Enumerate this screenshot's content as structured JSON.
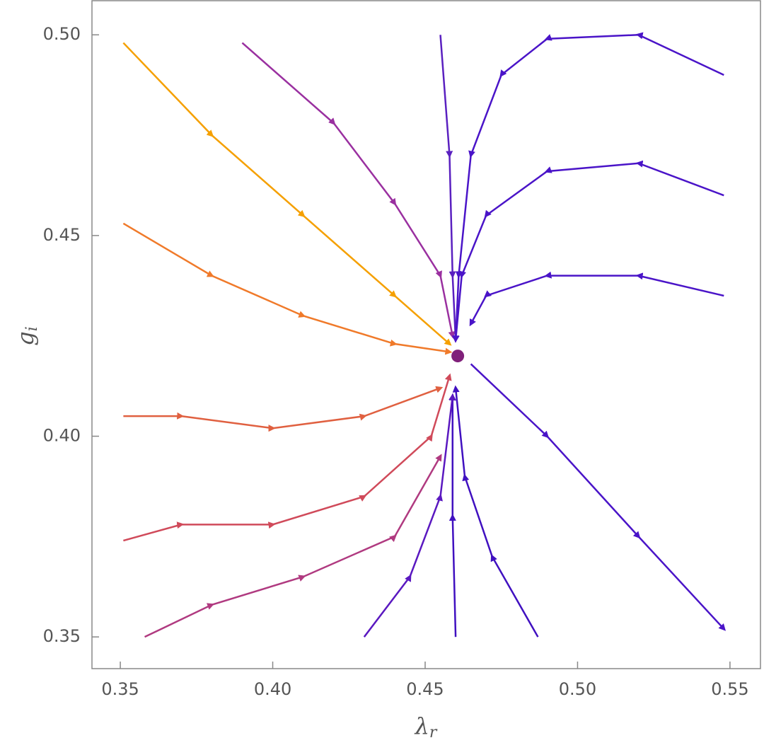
{
  "chart_data": {
    "type": "stream",
    "x_label": {
      "symbol": "λ",
      "subscript": "r"
    },
    "y_label": {
      "symbol": "g",
      "subscript": "i"
    },
    "xlim": [
      0.3407,
      0.56
    ],
    "ylim": [
      0.3421,
      0.5085
    ],
    "xticks": [
      0.35,
      {
        "value": 0.4,
        "label": "0.40"
      },
      0.45,
      {
        "value": 0.5,
        "label": "0.50"
      },
      0.55
    ],
    "yticks": [
      0.35,
      {
        "value": 0.4,
        "label": "0.40"
      },
      0.45,
      {
        "value": 0.5,
        "label": "0.50"
      }
    ],
    "fixed_point": {
      "x": 0.4607,
      "y": 0.42,
      "color": "#80207a"
    },
    "series": [
      {
        "color": "#f5a000",
        "x": [
          0.351,
          0.38,
          0.41,
          0.44,
          0.458
        ],
        "y": [
          0.498,
          0.475,
          0.455,
          0.435,
          0.423
        ]
      },
      {
        "color": "#f07a2a",
        "x": [
          0.351,
          0.38,
          0.41,
          0.44,
          0.458
        ],
        "y": [
          0.453,
          0.44,
          0.43,
          0.423,
          0.421
        ]
      },
      {
        "color": "#e06040",
        "x": [
          0.351,
          0.37,
          0.4,
          0.43,
          0.455
        ],
        "y": [
          0.405,
          0.405,
          0.402,
          0.405,
          0.412
        ]
      },
      {
        "color": "#d04a5a",
        "x": [
          0.351,
          0.37,
          0.4,
          0.43,
          0.452,
          0.458
        ],
        "y": [
          0.374,
          0.378,
          0.378,
          0.385,
          0.4,
          0.415
        ]
      },
      {
        "color": "#b03a80",
        "x": [
          0.358,
          0.38,
          0.41,
          0.44,
          0.455
        ],
        "y": [
          0.35,
          0.358,
          0.365,
          0.375,
          0.395
        ]
      },
      {
        "color": "#9a30a0",
        "x": [
          0.39,
          0.42,
          0.44,
          0.455,
          0.459
        ],
        "y": [
          0.498,
          0.478,
          0.458,
          0.44,
          0.425
        ]
      },
      {
        "color": "#5a20c0",
        "x": [
          0.455,
          0.458,
          0.459,
          0.46
        ],
        "y": [
          0.5,
          0.47,
          0.44,
          0.424
        ]
      },
      {
        "color": "#4a14c8",
        "x": [
          0.548,
          0.52,
          0.49,
          0.475,
          0.465,
          0.461,
          0.46
        ],
        "y": [
          0.49,
          0.5,
          0.499,
          0.49,
          0.47,
          0.44,
          0.424
        ]
      },
      {
        "color": "#4a14c8",
        "x": [
          0.548,
          0.52,
          0.49,
          0.47,
          0.462,
          0.46
        ],
        "y": [
          0.46,
          0.468,
          0.466,
          0.455,
          0.44,
          0.424
        ]
      },
      {
        "color": "#4a14c8",
        "x": [
          0.548,
          0.52,
          0.49,
          0.47,
          0.465
        ],
        "y": [
          0.435,
          0.44,
          0.44,
          0.435,
          0.428
        ]
      },
      {
        "color": "#4a14c8",
        "x": [
          0.465,
          0.49,
          0.52,
          0.548
        ],
        "y": [
          0.418,
          0.4,
          0.375,
          0.352
        ]
      },
      {
        "color": "#4010c0",
        "x": [
          0.46,
          0.459,
          0.459
        ],
        "y": [
          0.35,
          0.38,
          0.41
        ]
      },
      {
        "color": "#4010c0",
        "x": [
          0.487,
          0.472,
          0.463,
          0.46
        ],
        "y": [
          0.35,
          0.37,
          0.39,
          0.412
        ]
      },
      {
        "color": "#5a18c0",
        "x": [
          0.43,
          0.445,
          0.455,
          0.459
        ],
        "y": [
          0.35,
          0.365,
          0.385,
          0.41
        ]
      }
    ]
  }
}
